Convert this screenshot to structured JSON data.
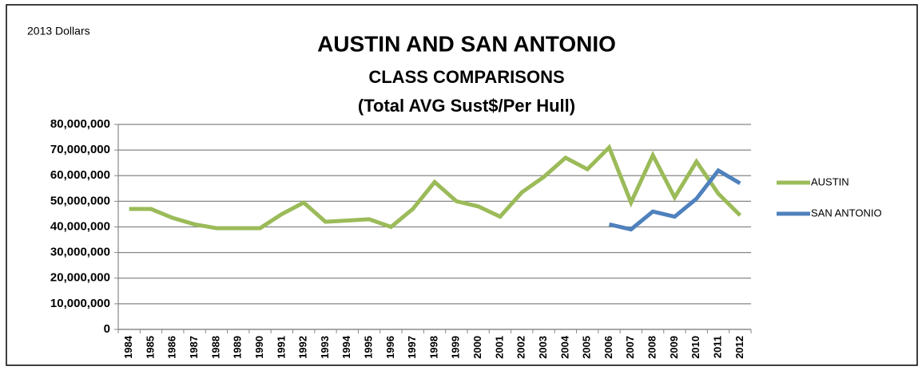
{
  "chart_data": {
    "type": "line",
    "title": "AUSTIN AND SAN ANTONIO",
    "subtitle": [
      "CLASS COMPARISONS",
      "(Total AVG Sust$/Per Hull)"
    ],
    "annotation": "2013 Dollars",
    "categories": [
      "1984",
      "1985",
      "1986",
      "1987",
      "1988",
      "1989",
      "1990",
      "1991",
      "1992",
      "1993",
      "1994",
      "1995",
      "1996",
      "1997",
      "1998",
      "1999",
      "2000",
      "2001",
      "2002",
      "2003",
      "2004",
      "2005",
      "2006",
      "2007",
      "2008",
      "2009",
      "2010",
      "2011",
      "2012"
    ],
    "series": [
      {
        "name": "AUSTIN",
        "color": "#9bbb59",
        "values": [
          47000000,
          47000000,
          43500000,
          41000000,
          39500000,
          39500000,
          39500000,
          45000000,
          49500000,
          42000000,
          42500000,
          43000000,
          40000000,
          47000000,
          57500000,
          50000000,
          48000000,
          44000000,
          53500000,
          59500000,
          67000000,
          62500000,
          71000000,
          49500000,
          68000000,
          51500000,
          65500000,
          53000000,
          44500000
        ]
      },
      {
        "name": "SAN ANTONIO",
        "color": "#4f81bd",
        "values": [
          null,
          null,
          null,
          null,
          null,
          null,
          null,
          null,
          null,
          null,
          null,
          null,
          null,
          null,
          null,
          null,
          null,
          null,
          null,
          null,
          null,
          null,
          41000000,
          39000000,
          46000000,
          44000000,
          51000000,
          62000000,
          57000000
        ]
      }
    ],
    "ylim": [
      0,
      80000000
    ],
    "yticks": [
      0,
      {
        "value": 10000000,
        "label": "10,000,000"
      },
      {
        "value": 20000000,
        "label": "20,000,000"
      },
      {
        "value": 30000000,
        "label": "30,000,000"
      },
      {
        "value": 40000000,
        "label": "40,000,000"
      },
      {
        "value": 50000000,
        "label": "50,000,000"
      },
      {
        "value": 60000000,
        "label": "60,000,000"
      },
      {
        "value": 70000000,
        "label": "70,000,000"
      },
      {
        "value": 80000000,
        "label": "80,000,000"
      }
    ],
    "grid": true,
    "legend": "right"
  }
}
